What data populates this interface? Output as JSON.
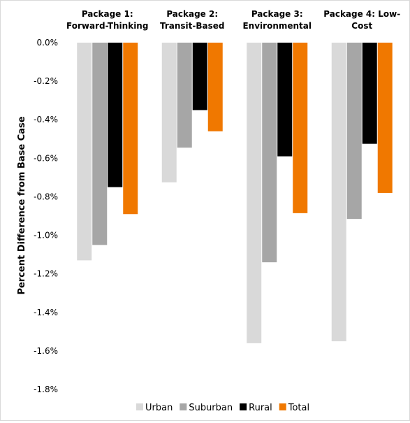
{
  "chart_data": {
    "type": "bar",
    "categories": [
      [
        "Package 1:",
        "Forward-Thinking"
      ],
      [
        "Package 2:",
        "Transit-Based"
      ],
      [
        "Package 3:",
        "Environmental"
      ],
      [
        "Package 4: Low-",
        "Cost"
      ]
    ],
    "series": [
      {
        "name": "Urban",
        "color": "#d9d9d9",
        "values": [
          -1.13,
          -0.725,
          -1.56,
          -1.55
        ]
      },
      {
        "name": "Suburban",
        "color": "#a6a6a6",
        "values": [
          -1.05,
          -0.545,
          -1.14,
          -0.915
        ]
      },
      {
        "name": "Rural",
        "color": "#000000",
        "values": [
          -0.75,
          -0.35,
          -0.59,
          -0.525
        ]
      },
      {
        "name": "Total",
        "color": "#f07800",
        "values": [
          -0.89,
          -0.46,
          -0.885,
          -0.78
        ]
      }
    ],
    "ylabel": "Percent Difference from Base Case",
    "yticks": [
      "0.0%",
      "-0.2%",
      "-0.4%",
      "-0.6%",
      "-0.8%",
      "-1.0%",
      "-1.2%",
      "-1.4%",
      "-1.6%",
      "-1.8%"
    ],
    "ylim": [
      -1.8,
      0
    ],
    "grid": false,
    "legend_position": "bottom"
  }
}
